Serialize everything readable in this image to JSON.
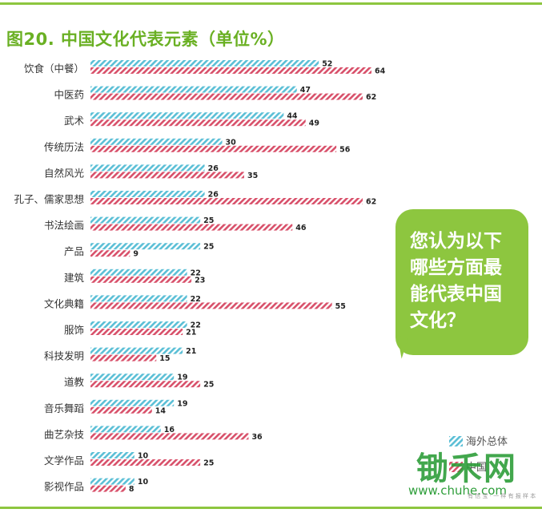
{
  "chart_data": {
    "type": "bar",
    "orientation": "horizontal",
    "title": "图20. 中国文化代表元素（单位%）",
    "categories": [
      "饮食（中餐）",
      "中医药",
      "武术",
      "传统历法",
      "自然风光",
      "孔子、儒家思想",
      "书法绘画",
      "产品",
      "建筑",
      "文化典籍",
      "服饰",
      "科技发明",
      "道教",
      "音乐舞蹈",
      "曲艺杂技",
      "文学作品",
      "影视作品"
    ],
    "series": [
      {
        "name": "海外总体",
        "color": "#5bbfd6",
        "values": [
          52,
          47,
          44,
          30,
          26,
          26,
          25,
          25,
          22,
          22,
          22,
          21,
          19,
          19,
          16,
          10,
          10
        ]
      },
      {
        "name": "中国",
        "color": "#d8506a",
        "values": [
          64,
          62,
          49,
          56,
          35,
          62,
          46,
          9,
          23,
          55,
          21,
          15,
          25,
          14,
          36,
          25,
          8
        ]
      }
    ],
    "xlim": [
      0,
      64
    ],
    "grid": false,
    "legend_position": "bottom-right"
  },
  "callout": {
    "text": "您认为以下\n哪些方面最\n能代表中国\n文化？"
  },
  "watermark": {
    "brand": "锄禾网",
    "url": "www.chuhe.com",
    "note": "有 信 宝 · 一 样 有 报 样 本"
  }
}
